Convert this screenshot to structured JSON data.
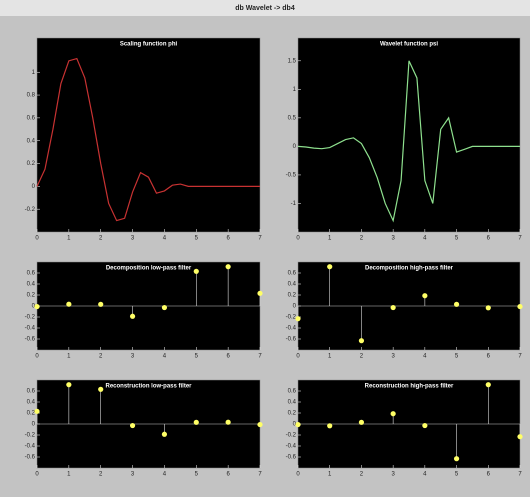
{
  "title": "db Wavelet -> db4",
  "chart_data": [
    {
      "type": "line",
      "title": "Scaling function phi",
      "color": "#c83232",
      "x": [
        0,
        0.25,
        0.5,
        0.75,
        1,
        1.25,
        1.5,
        1.75,
        2,
        2.25,
        2.5,
        2.75,
        3,
        3.25,
        3.5,
        3.75,
        4,
        4.25,
        4.5,
        4.75,
        5,
        5.25,
        5.5,
        5.75,
        6,
        6.25,
        6.5,
        6.75,
        7
      ],
      "values": [
        0,
        0.15,
        0.5,
        0.9,
        1.1,
        1.12,
        0.95,
        0.6,
        0.2,
        -0.15,
        -0.3,
        -0.28,
        -0.05,
        0.12,
        0.08,
        -0.06,
        -0.04,
        0.01,
        0.02,
        0,
        0,
        0,
        0,
        0,
        0,
        0,
        0,
        0,
        0
      ],
      "xlim": [
        0,
        7
      ],
      "xticks": [
        0,
        1,
        2,
        3,
        4,
        5,
        6,
        7
      ],
      "ylim": [
        -0.4,
        1.3
      ],
      "yticks": [
        -0.2,
        0,
        0.2,
        0.4,
        0.6,
        0.8,
        1
      ]
    },
    {
      "type": "line",
      "title": "Wavelet function psi",
      "color": "#8ee08e",
      "x": [
        0,
        0.25,
        0.5,
        0.75,
        1,
        1.25,
        1.5,
        1.75,
        2,
        2.25,
        2.5,
        2.75,
        3,
        3.25,
        3.5,
        3.75,
        4,
        4.25,
        4.5,
        4.75,
        5,
        5.25,
        5.5,
        5.75,
        6,
        6.25,
        6.5,
        6.75,
        7
      ],
      "values": [
        0,
        -0.01,
        -0.03,
        -0.04,
        -0.02,
        0.05,
        0.12,
        0.15,
        0.05,
        -0.2,
        -0.55,
        -1.0,
        -1.3,
        -0.6,
        1.5,
        1.2,
        -0.6,
        -1.0,
        0.3,
        0.5,
        -0.1,
        -0.05,
        0,
        0,
        0,
        0,
        0,
        0,
        0
      ],
      "xlim": [
        0,
        7
      ],
      "xticks": [
        0,
        1,
        2,
        3,
        4,
        5,
        6,
        7
      ],
      "ylim": [
        -1.5,
        1.9
      ],
      "yticks": [
        -1,
        -0.5,
        0,
        0.5,
        1,
        1.5
      ]
    },
    {
      "type": "stem",
      "title": "Decomposition low-pass filter",
      "color": "#ffff66",
      "x": [
        0,
        1,
        2,
        3,
        4,
        5,
        6,
        7
      ],
      "values": [
        -0.0106,
        0.0329,
        0.0308,
        -0.187,
        -0.028,
        0.6309,
        0.7148,
        0.2304
      ],
      "xlim": [
        0,
        7
      ],
      "xticks": [
        0,
        1,
        2,
        3,
        4,
        5,
        6,
        7
      ],
      "ylim": [
        -0.8,
        0.8
      ],
      "yticks": [
        -0.6,
        -0.4,
        -0.2,
        0,
        0.2,
        0.4,
        0.6
      ]
    },
    {
      "type": "stem",
      "title": "Decomposition high-pass filter",
      "color": "#ffff66",
      "x": [
        0,
        1,
        2,
        3,
        4,
        5,
        6,
        7
      ],
      "values": [
        -0.2304,
        0.7148,
        -0.6309,
        -0.028,
        0.187,
        0.0308,
        -0.0329,
        -0.0106
      ],
      "xlim": [
        0,
        7
      ],
      "xticks": [
        0,
        1,
        2,
        3,
        4,
        5,
        6,
        7
      ],
      "ylim": [
        -0.8,
        0.8
      ],
      "yticks": [
        -0.6,
        -0.4,
        -0.2,
        0,
        0.2,
        0.4,
        0.6
      ]
    },
    {
      "type": "stem",
      "title": "Reconstruction low-pass filter",
      "color": "#ffff66",
      "x": [
        0,
        1,
        2,
        3,
        4,
        5,
        6,
        7
      ],
      "values": [
        0.2304,
        0.7148,
        0.6309,
        -0.028,
        -0.187,
        0.0308,
        0.0329,
        -0.0106
      ],
      "xlim": [
        0,
        7
      ],
      "xticks": [
        0,
        1,
        2,
        3,
        4,
        5,
        6,
        7
      ],
      "ylim": [
        -0.8,
        0.8
      ],
      "yticks": [
        -0.6,
        -0.4,
        -0.2,
        0,
        0.2,
        0.4,
        0.6
      ]
    },
    {
      "type": "stem",
      "title": "Reconstruction high-pass filter",
      "color": "#ffff66",
      "x": [
        0,
        1,
        2,
        3,
        4,
        5,
        6,
        7
      ],
      "values": [
        -0.0106,
        -0.0329,
        0.0308,
        0.187,
        -0.028,
        -0.6309,
        0.7148,
        -0.2304
      ],
      "xlim": [
        0,
        7
      ],
      "xticks": [
        0,
        1,
        2,
        3,
        4,
        5,
        6,
        7
      ],
      "ylim": [
        -0.8,
        0.8
      ],
      "yticks": [
        -0.6,
        -0.4,
        -0.2,
        0,
        0.2,
        0.4,
        0.6
      ]
    }
  ]
}
